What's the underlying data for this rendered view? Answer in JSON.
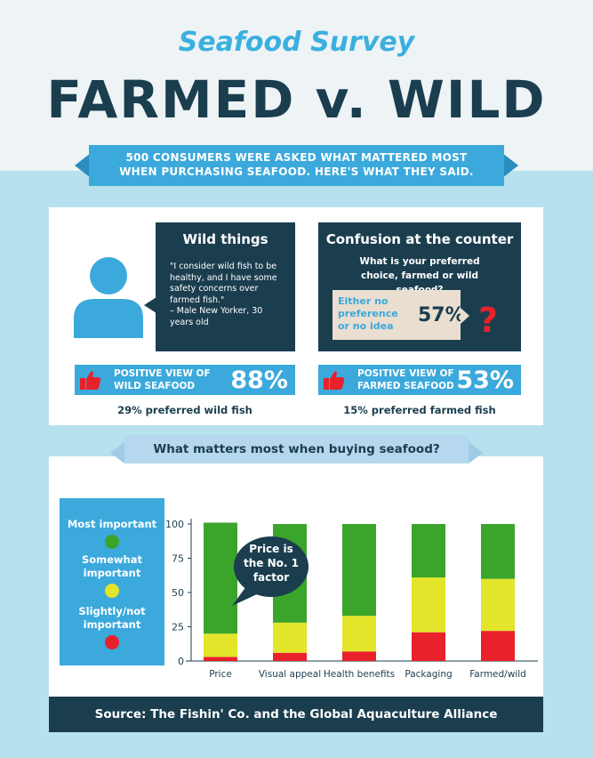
{
  "header": {
    "subtitle": "Seafood Survey",
    "title": "FARMED v. WILD",
    "intro_line1": "500 CONSUMERS WERE ASKED WHAT MATTERED MOST",
    "intro_line2": "WHEN PURCHASING SEAFOOD. HERE'S WHAT THEY SAID."
  },
  "wild_things": {
    "heading": "Wild things",
    "quote": "\"I consider wild fish to be healthy, and I have some safety concerns over farmed fish.\"",
    "attribution": "– Male New Yorker, 30 years old"
  },
  "confusion": {
    "heading": "Confusion at the counter",
    "question": "What is your preferred choice, farmed or wild seafood?",
    "no_pref_label": "Either no preference or no idea",
    "no_pref_pct": "57%",
    "qmark": "?"
  },
  "positive_wild": {
    "label_line1": "POSITIVE VIEW OF",
    "label_line2": "WILD SEAFOOD",
    "pct": "88%",
    "preferred": "29% preferred wild fish"
  },
  "positive_farmed": {
    "label_line1": "POSITIVE VIEW OF",
    "label_line2": "FARMED SEAFOOD",
    "pct": "53%",
    "preferred": "15% preferred farmed fish"
  },
  "section2": {
    "heading": "What matters most when buying seafood?"
  },
  "legend": {
    "most": "Most important",
    "somewhat": "Somewhat important",
    "slightly": "Slightly/not important"
  },
  "callout": {
    "text_line1": "Price is",
    "text_line2": "the No. 1",
    "text_line3": "factor"
  },
  "colors": {
    "green": "#3aa52a",
    "yellow": "#e2e52a",
    "red": "#e8212b",
    "dark": "#1b3e4f",
    "blue": "#3ba9dc"
  },
  "chart_data": {
    "type": "bar",
    "stacked": true,
    "title": "What matters most when buying seafood?",
    "categories": [
      "Price",
      "Visual appeal",
      "Health benefits",
      "Packaging",
      "Farmed/wild"
    ],
    "series": [
      {
        "name": "Slightly/not important",
        "color": "#e8212b",
        "values": [
          3,
          6,
          7,
          21,
          22
        ]
      },
      {
        "name": "Somewhat important",
        "color": "#e2e52a",
        "values": [
          17,
          22,
          26,
          40,
          38
        ]
      },
      {
        "name": "Most important",
        "color": "#3aa52a",
        "values": [
          81,
          72,
          67,
          39,
          40
        ]
      }
    ],
    "yticks": [
      "0",
      "25",
      "50",
      "75",
      "100"
    ],
    "ylim": [
      0,
      100
    ]
  },
  "footer": {
    "source": "Source: The Fishin' Co.  and the Global Aquaculture Alliance"
  }
}
